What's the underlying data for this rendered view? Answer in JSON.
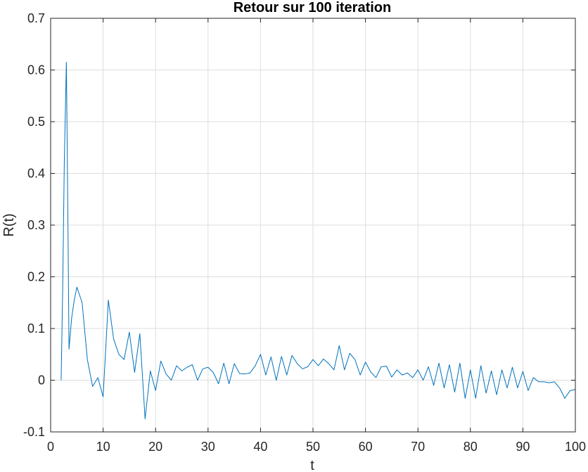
{
  "chart_data": {
    "type": "line",
    "title": "Retour sur 100 iteration",
    "xlabel": "t",
    "ylabel": "R(t)",
    "xlim": [
      0,
      100
    ],
    "ylim": [
      -0.1,
      0.7
    ],
    "xticks": [
      "0",
      "10",
      "20",
      "30",
      "40",
      "50",
      "60",
      "70",
      "80",
      "90",
      "100"
    ],
    "yticks": [
      "-0.1",
      "0",
      "0.1",
      "0.2",
      "0.3",
      "0.4",
      "0.5",
      "0.6",
      "0.7"
    ],
    "grid": true,
    "line_color": "#0072BD",
    "series": [
      {
        "x": [
          2,
          2.3,
          2.6,
          3,
          3.3,
          3.5,
          4,
          4.5,
          5,
          6,
          7,
          8,
          9,
          10,
          11,
          12,
          13,
          14,
          15,
          16,
          17,
          18,
          19,
          20,
          21,
          22,
          23,
          24,
          25,
          26,
          27,
          28,
          29,
          30,
          31,
          32,
          33,
          34,
          35,
          36,
          37,
          38,
          39,
          40,
          41,
          42,
          43,
          44,
          45,
          46,
          47,
          48,
          49,
          50,
          51,
          52,
          53,
          54,
          55,
          56,
          57,
          58,
          59,
          60,
          61,
          62,
          63,
          64,
          65,
          66,
          67,
          68,
          69,
          70,
          71,
          72,
          73,
          74,
          75,
          76,
          77,
          78,
          79,
          80,
          81,
          82,
          83,
          84,
          85,
          86,
          87,
          88,
          89,
          90,
          91,
          92,
          93,
          94,
          95,
          96,
          97,
          98,
          99,
          100
        ],
        "values": [
          0.0,
          0.18,
          0.42,
          0.615,
          0.3,
          0.06,
          0.12,
          0.155,
          0.18,
          0.15,
          0.04,
          -0.012,
          0.005,
          -0.032,
          0.155,
          0.08,
          0.05,
          0.04,
          0.093,
          0.015,
          0.09,
          -0.075,
          0.018,
          -0.02,
          0.037,
          0.012,
          0.0,
          0.028,
          0.018,
          0.025,
          0.03,
          0.0,
          0.022,
          0.025,
          0.015,
          -0.007,
          0.033,
          -0.007,
          0.032,
          0.013,
          0.012,
          0.014,
          0.028,
          0.05,
          0.01,
          0.045,
          0.0,
          0.046,
          0.01,
          0.048,
          0.032,
          0.022,
          0.026,
          0.04,
          0.028,
          0.041,
          0.032,
          0.02,
          0.067,
          0.02,
          0.052,
          0.04,
          0.01,
          0.035,
          0.016,
          0.005,
          0.026,
          0.027,
          0.006,
          0.02,
          0.01,
          0.014,
          0.005,
          0.02,
          0.0,
          0.026,
          -0.01,
          0.033,
          -0.015,
          0.03,
          -0.023,
          0.033,
          -0.035,
          0.02,
          -0.035,
          0.028,
          -0.025,
          0.018,
          -0.028,
          0.02,
          -0.015,
          0.025,
          -0.015,
          0.017,
          -0.02,
          0.005,
          -0.003,
          -0.003,
          -0.005,
          -0.003,
          -0.015,
          -0.035,
          -0.02,
          -0.018
        ]
      }
    ]
  }
}
